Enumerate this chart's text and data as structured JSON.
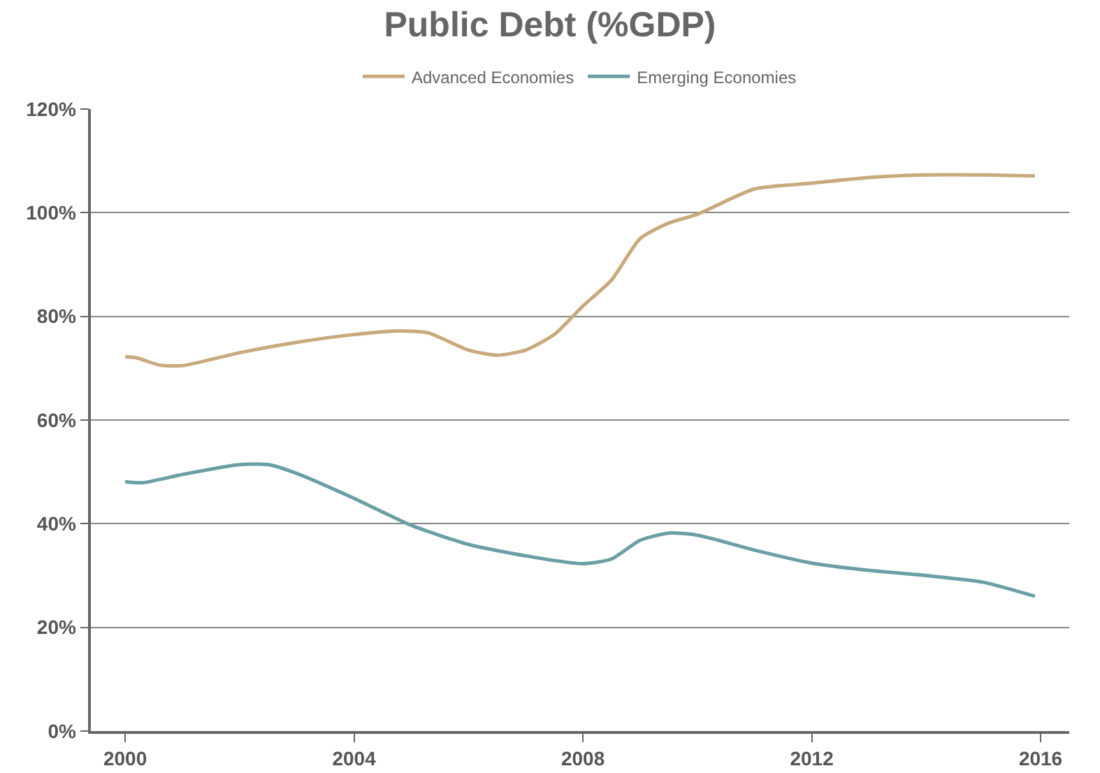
{
  "chart_data": {
    "type": "line",
    "title": "Public Debt (%GDP)",
    "series": [
      {
        "name": "Advanced Economies",
        "color": "#c8aa7d",
        "x": [
          2000,
          2000.2,
          2000.6,
          2001,
          2002,
          2003,
          2004,
          2004.8,
          2005.3,
          2006,
          2006.5,
          2007,
          2007.5,
          2008,
          2008.5,
          2009,
          2009.5,
          2010,
          2011,
          2012,
          2013,
          2014,
          2015,
          2015.9
        ],
        "values": [
          72.2,
          72,
          70.6,
          70.5,
          73,
          75,
          76.5,
          77.2,
          76.8,
          73.5,
          72.5,
          73.5,
          76.5,
          82,
          87,
          95,
          98,
          99.7,
          104.6,
          105.7,
          106.8,
          107.3,
          107.3,
          107.1
        ]
      },
      {
        "name": "Emerging Economies",
        "color": "#6a9fa5",
        "x": [
          2000,
          2000.3,
          2001,
          2002,
          2002.5,
          2003,
          2004,
          2005,
          2006,
          2007,
          2008,
          2008.5,
          2009,
          2009.5,
          2010,
          2011,
          2012,
          2013,
          2014,
          2015,
          2015.9
        ],
        "values": [
          48.1,
          47.9,
          49.5,
          51.4,
          51.4,
          49.7,
          44.9,
          39.7,
          36,
          33.8,
          32.3,
          33.2,
          36.8,
          38.2,
          37.8,
          34.9,
          32.4,
          31,
          30,
          28.7,
          26
        ]
      }
    ],
    "xlim": [
      1999.4,
      2016.5
    ],
    "xticks": [
      2000,
      2004,
      2008,
      2012,
      2016
    ],
    "ylim": [
      0,
      120
    ],
    "yticks": [
      {
        "value": 0,
        "label": "0%"
      },
      {
        "value": 20,
        "label": "20%"
      },
      {
        "value": 40,
        "label": "40%"
      },
      {
        "value": 60,
        "label": "60%"
      },
      {
        "value": 80,
        "label": "80%"
      },
      {
        "value": 100,
        "label": "100%"
      },
      {
        "value": 120,
        "label": "120%"
      }
    ],
    "grid": "y",
    "legend": "top",
    "line_style": "solid",
    "marker": "none"
  }
}
